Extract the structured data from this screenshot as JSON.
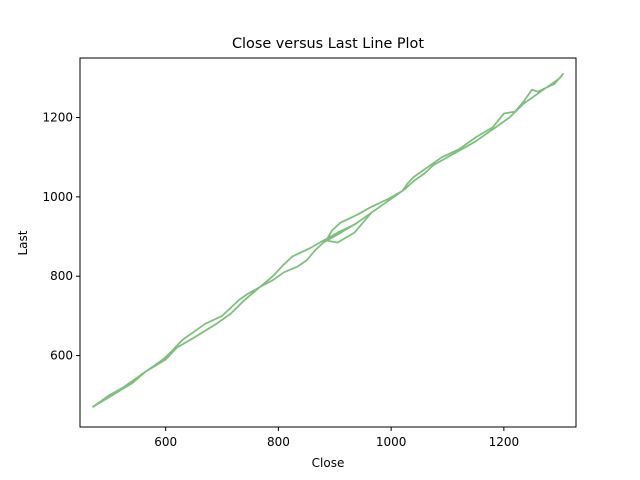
{
  "chart_data": {
    "type": "line",
    "title": "Close versus Last Line Plot",
    "xlabel": "Close",
    "ylabel": "Last",
    "xlim": [
      448,
      1328
    ],
    "ylim": [
      420,
      1350
    ],
    "grid": false,
    "xticks": [
      600,
      800,
      1000,
      1200
    ],
    "yticks": [
      600,
      800,
      1000,
      1200
    ],
    "series": [
      {
        "color": "#7fbf7f",
        "x": [
          470,
          505,
          540,
          565,
          600,
          620,
          650,
          690,
          715,
          740,
          765,
          790,
          810,
          825,
          855,
          880,
          905,
          935,
          965,
          990,
          1010,
          1025,
          1040,
          1060,
          1075,
          1100,
          1125,
          1150,
          1175,
          1200,
          1210,
          1235,
          1260,
          1285,
          1300,
          1305,
          1290,
          1260,
          1250,
          1235,
          1220,
          1200,
          1180,
          1150,
          1120,
          1090,
          1060,
          1040,
          1030,
          1020,
          995,
          965,
          940,
          910,
          895,
          885,
          905,
          935,
          965,
          940,
          905,
          880,
          865,
          850,
          835,
          810,
          790,
          770,
          745,
          730,
          715,
          700,
          685,
          670,
          650,
          630,
          610,
          595,
          575,
          560,
          545,
          525,
          500,
          480,
          470
        ],
        "y": [
          470,
          500,
          530,
          560,
          590,
          620,
          645,
          680,
          705,
          740,
          770,
          800,
          830,
          850,
          870,
          890,
          910,
          930,
          960,
          985,
          1005,
          1020,
          1040,
          1060,
          1080,
          1100,
          1120,
          1140,
          1165,
          1190,
          1200,
          1235,
          1260,
          1285,
          1300,
          1310,
          1285,
          1265,
          1270,
          1240,
          1215,
          1210,
          1175,
          1150,
          1120,
          1100,
          1070,
          1050,
          1035,
          1015,
          995,
          975,
          955,
          935,
          915,
          890,
          885,
          910,
          960,
          935,
          905,
          885,
          865,
          840,
          825,
          810,
          790,
          775,
          755,
          740,
          720,
          700,
          690,
          680,
          660,
          640,
          610,
          590,
          570,
          555,
          540,
          520,
          500,
          480,
          470
        ]
      }
    ]
  }
}
